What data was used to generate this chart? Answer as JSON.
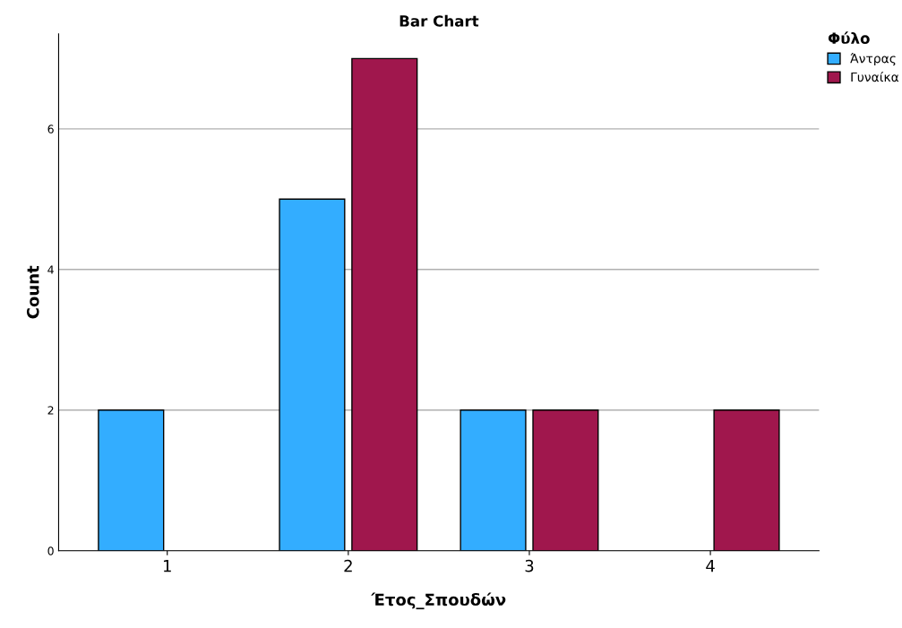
{
  "chart_data": {
    "type": "bar",
    "title": "Bar Chart",
    "xlabel": "Έτος_Σπουδών",
    "ylabel": "Count",
    "legend_title": "Φύλο",
    "categories": [
      "1",
      "2",
      "3",
      "4"
    ],
    "series": [
      {
        "name": "Άντρας",
        "color": "#33adff",
        "values": [
          2,
          5,
          2,
          null
        ]
      },
      {
        "name": "Γυναίκα",
        "color": "#a0174d",
        "values": [
          null,
          7,
          2,
          2
        ]
      }
    ],
    "ylim": [
      0,
      7.35
    ],
    "yticks": [
      0,
      2,
      4,
      6
    ],
    "grid": "y",
    "legend": "top right"
  }
}
